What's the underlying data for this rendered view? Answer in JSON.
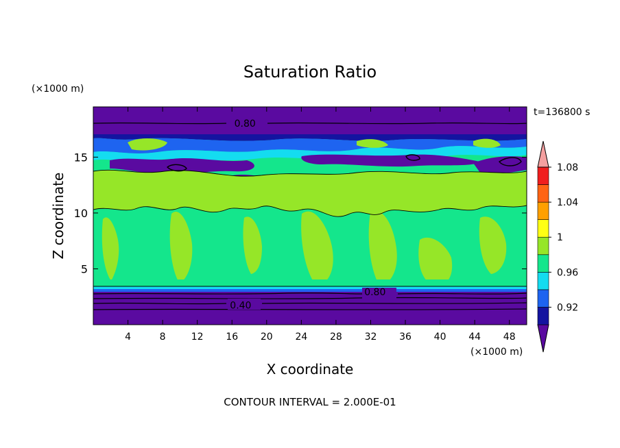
{
  "chart_data": {
    "type": "heatmap",
    "title": "Saturation Ratio",
    "xlabel": "X coordinate",
    "ylabel": "Z coordinate",
    "x_unit_label": "(×1000 m)",
    "y_unit_label": "(×1000 m)",
    "time_label": "t=136800 s",
    "footer": "CONTOUR INTERVAL = 2.000E-01",
    "xlim": [
      0,
      50
    ],
    "ylim": [
      0,
      19.5
    ],
    "x_ticks": [
      4,
      8,
      12,
      16,
      20,
      24,
      28,
      32,
      36,
      40,
      44,
      48
    ],
    "y_ticks": [
      5,
      10,
      15
    ],
    "contour_labels": [
      {
        "text": "0.80",
        "x": 17.5,
        "z": 18.1
      },
      {
        "text": "0.80",
        "x": 32.5,
        "z": 3.0
      },
      {
        "text": "0.40",
        "x": 17.0,
        "z": 1.8
      }
    ],
    "colorbar": {
      "colors": [
        "#5a0aa0",
        "#1414a0",
        "#1e64f0",
        "#14dcf0",
        "#14e68c",
        "#96e628",
        "#ffff14",
        "#ffa000",
        "#ff6414",
        "#f01e1e",
        "#f4a0a0"
      ],
      "tick_labels": [
        "0.92",
        "0.96",
        "1",
        "1.04",
        "1.08"
      ],
      "extend": "both"
    },
    "bands": [
      {
        "z_min": 0.0,
        "z_max": 3.3,
        "value": "< 0.92"
      },
      {
        "z_min": 3.3,
        "z_max": 3.6,
        "value": "0.92-0.98"
      },
      {
        "z_min": 3.6,
        "z_max": 4.2,
        "value": "0.98-1.00"
      },
      {
        "z_min": 4.2,
        "z_max": 13.5,
        "value": "0.98-1.02 (mixed)"
      },
      {
        "z_min": 13.5,
        "z_max": 17.2,
        "value": "0.92-1.00 (mixed)"
      },
      {
        "z_min": 17.2,
        "z_max": 19.5,
        "value": "< 0.92"
      }
    ]
  }
}
